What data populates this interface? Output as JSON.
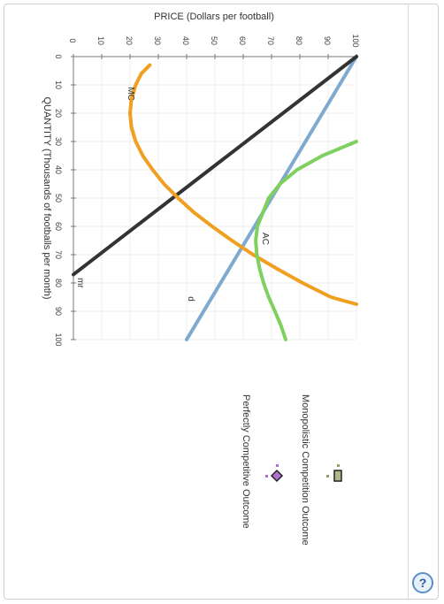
{
  "chart_data": {
    "type": "line",
    "xlabel": "QUANTITY (Thousands of footballs per month)",
    "ylabel": "PRICE (Dollars per football)",
    "xlim": [
      0,
      100
    ],
    "ylim": [
      0,
      100
    ],
    "x_ticks": [
      0,
      10,
      20,
      30,
      40,
      50,
      60,
      70,
      80,
      90,
      100
    ],
    "y_ticks": [
      0,
      10,
      20,
      30,
      40,
      50,
      60,
      70,
      80,
      90,
      100
    ],
    "grid": true,
    "series": [
      {
        "name": "d",
        "color": "#7fa9cf",
        "points": [
          [
            0,
            100
          ],
          [
            100,
            40
          ]
        ]
      },
      {
        "name": "mr",
        "color": "#333333",
        "points": [
          [
            0,
            100
          ],
          [
            77,
            0
          ]
        ]
      },
      {
        "name": "MC",
        "color": "#f0a020",
        "points": [
          [
            3,
            27
          ],
          [
            6,
            24
          ],
          [
            10,
            22
          ],
          [
            15,
            20.5
          ],
          [
            20,
            20
          ],
          [
            25,
            20.5
          ],
          [
            30,
            22
          ],
          [
            35,
            24.5
          ],
          [
            40,
            28
          ],
          [
            45,
            32
          ],
          [
            50,
            37
          ],
          [
            55,
            42.5
          ],
          [
            60,
            49
          ],
          [
            65,
            56
          ],
          [
            70,
            63.5
          ],
          [
            75,
            72
          ],
          [
            80,
            81
          ],
          [
            85,
            91
          ],
          [
            87.5,
            100
          ]
        ]
      },
      {
        "name": "AC",
        "color": "#80d060",
        "points": [
          [
            30,
            100
          ],
          [
            35,
            88
          ],
          [
            40,
            79
          ],
          [
            45,
            73
          ],
          [
            50,
            69
          ],
          [
            55,
            67
          ],
          [
            60,
            65
          ],
          [
            65,
            64.4
          ],
          [
            70,
            64.8
          ],
          [
            75,
            65.8
          ],
          [
            80,
            67.2
          ],
          [
            85,
            69
          ],
          [
            90,
            71.2
          ],
          [
            95,
            73.3
          ],
          [
            100,
            75
          ]
        ]
      }
    ],
    "curve_labels": [
      {
        "text": "MC",
        "series": "MC"
      },
      {
        "text": "AC",
        "series": "AC"
      },
      {
        "text": "d",
        "series": "d"
      },
      {
        "text": "mr",
        "series": "mr"
      }
    ],
    "legend": {
      "position": "right",
      "items": [
        {
          "label": "Monopolistic Competition Outcome",
          "marker": "square",
          "color": "#b0b888",
          "dot_color": "#90a060"
        },
        {
          "label": "Perfectly Competitive Outcome",
          "marker": "diamond",
          "color": "#b070d0",
          "dot_color": "#b070d0"
        }
      ]
    }
  },
  "help_button": {
    "label": "?"
  }
}
